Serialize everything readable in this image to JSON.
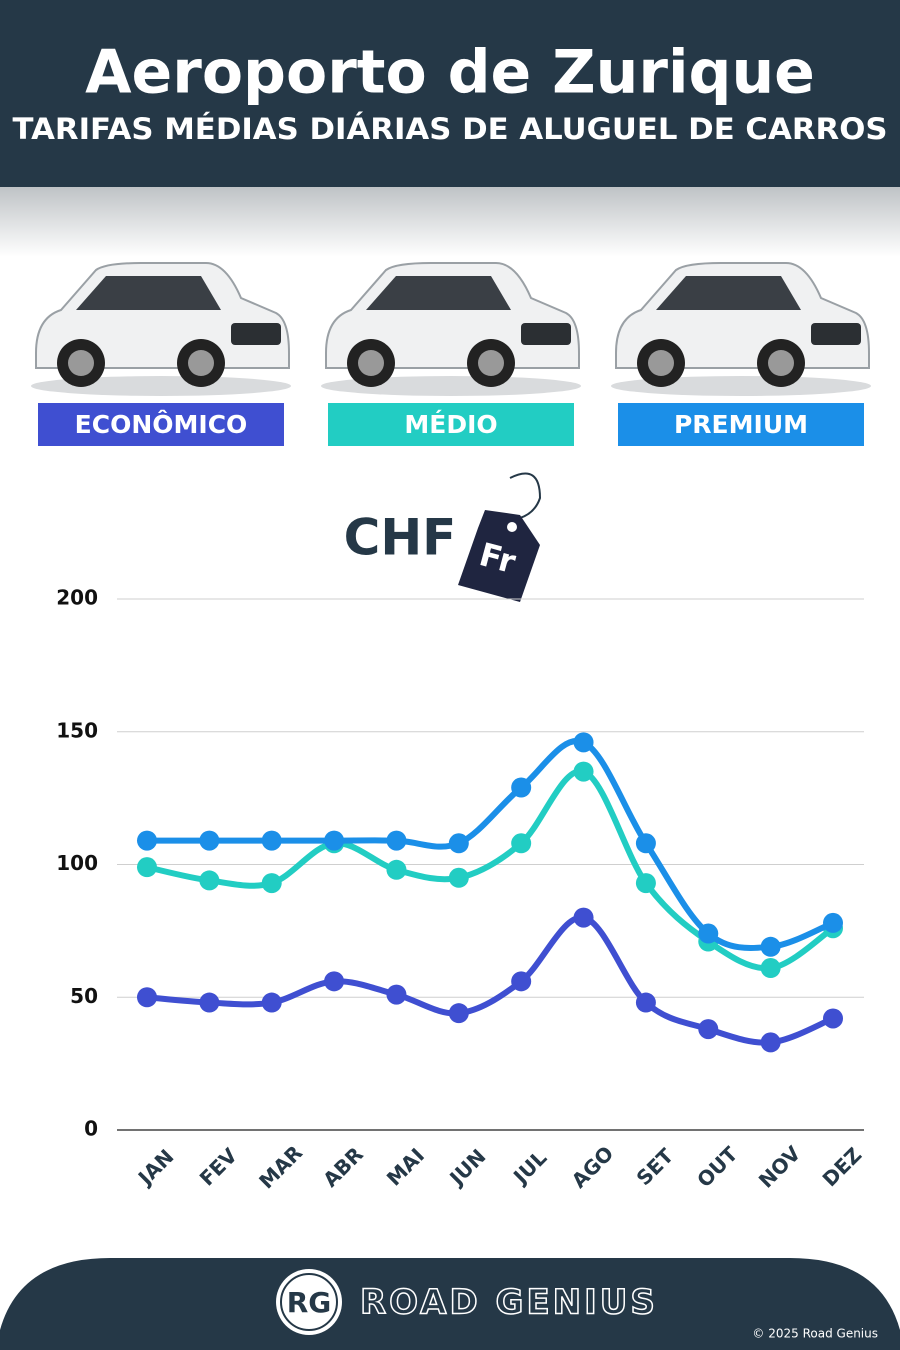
{
  "chart_data": {
    "type": "line",
    "title": "Aeroporto de Zurique",
    "subtitle": "TARIFAS MÉDIAS DIÁRIAS DE ALUGUEL DE CARROS",
    "unit_label": "CHF",
    "unit_tag": "Fr",
    "categories": [
      "JAN",
      "FEV",
      "MAR",
      "ABR",
      "MAI",
      "JUN",
      "JUL",
      "AGO",
      "SET",
      "OUT",
      "NOV",
      "DEZ"
    ],
    "series": [
      {
        "name": "ECONÔMICO",
        "color": "#3f4fd1",
        "values": [
          50,
          48,
          48,
          56,
          51,
          44,
          56,
          80,
          48,
          38,
          33,
          42
        ]
      },
      {
        "name": "MÉDIO",
        "color": "#22cdc3",
        "values": [
          99,
          94,
          93,
          108,
          98,
          95,
          108,
          135,
          93,
          71,
          61,
          76
        ]
      },
      {
        "name": "PREMIUM",
        "color": "#1b8fe8",
        "values": [
          109,
          109,
          109,
          109,
          109,
          108,
          129,
          146,
          108,
          74,
          69,
          78
        ]
      }
    ],
    "ylim": [
      0,
      200
    ],
    "yticks": [
      0,
      50,
      100,
      150,
      200
    ],
    "grid": true
  },
  "footer": {
    "logo": "RG",
    "brand": "ROAD GENIUS",
    "copyright": "© 2025 Road Genius"
  }
}
